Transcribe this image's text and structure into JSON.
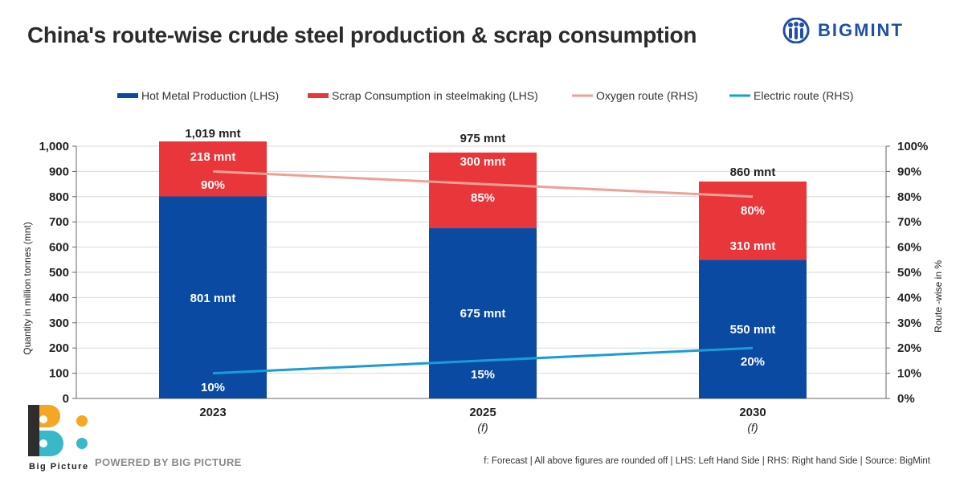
{
  "title": "China's route-wise crude steel production & scrap consumption",
  "brand": {
    "name": "BIGMINT",
    "color": "#1f4fa8"
  },
  "footer": {
    "logo_text": "Big Picture",
    "powered": "POWERED BY BIG PICTURE",
    "note": "f: Forecast | All above figures are rounded off | LHS: Left Hand Side | RHS: Right hand Side | Source: BigMint"
  },
  "chart_data": {
    "type": "bar",
    "stacked": true,
    "categories": [
      "2023",
      "2025",
      "2030"
    ],
    "category_notes": [
      "",
      "(f)",
      "(f)"
    ],
    "series": [
      {
        "name": "Hot Metal Production (LHS)",
        "kind": "bar",
        "axis": "left",
        "color": "#0b4aa2",
        "values": [
          801,
          675,
          550
        ],
        "labels": [
          "801 mnt",
          "675 mnt",
          "550 mnt"
        ]
      },
      {
        "name": "Scrap Consumption in steelmaking (LHS)",
        "kind": "bar",
        "axis": "left",
        "color": "#e8363a",
        "values": [
          218,
          300,
          310
        ],
        "labels": [
          "218 mnt",
          "300 mnt",
          "310 mnt"
        ]
      },
      {
        "name": "Oxygen route (RHS)",
        "kind": "line",
        "axis": "right",
        "color": "#efa096",
        "values": [
          90,
          85,
          80
        ],
        "labels": [
          "90%",
          "85%",
          "80%"
        ]
      },
      {
        "name": "Electric route (RHS)",
        "kind": "line",
        "axis": "right",
        "color": "#1a9cd8",
        "values": [
          10,
          15,
          20
        ],
        "labels": [
          "10%",
          "15%",
          "20%"
        ]
      }
    ],
    "totals": [
      1019,
      975,
      860
    ],
    "total_labels": [
      "1,019 mnt",
      "975 mnt",
      "860 mnt"
    ],
    "y_left": {
      "label": "Quantity in million tonnes (mnt)",
      "lim": [
        0,
        1000
      ],
      "ticks": [
        0,
        100,
        200,
        300,
        400,
        500,
        600,
        700,
        800,
        900,
        1000
      ],
      "tick_labels": [
        "0",
        "100",
        "200",
        "300",
        "400",
        "500",
        "600",
        "700",
        "800",
        "900",
        "1,000"
      ]
    },
    "y_right": {
      "label": "Route -wise in %",
      "lim": [
        0,
        100
      ],
      "ticks": [
        0,
        10,
        20,
        30,
        40,
        50,
        60,
        70,
        80,
        90,
        100
      ],
      "tick_labels": [
        "0%",
        "10%",
        "20%",
        "30%",
        "40%",
        "50%",
        "60%",
        "70%",
        "80%",
        "90%",
        "100%"
      ]
    },
    "grid": true,
    "legend": "top"
  }
}
